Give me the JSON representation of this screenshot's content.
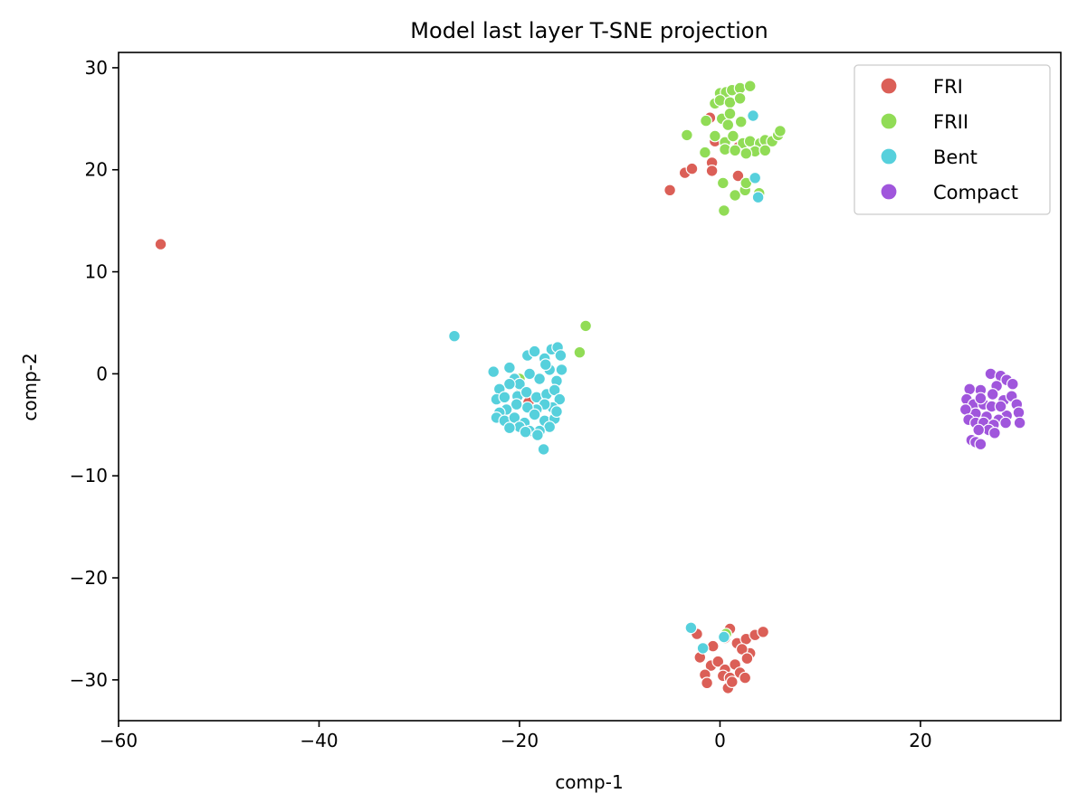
{
  "chart_data": {
    "type": "scatter",
    "title": "Model last layer T-SNE projection",
    "xlabel": "comp-1",
    "ylabel": "comp-2",
    "xlim": [
      -60,
      34
    ],
    "ylim": [
      -34,
      31.5
    ],
    "xticks": [
      -60,
      -40,
      -20,
      0,
      20
    ],
    "yticks": [
      -30,
      -20,
      -10,
      0,
      10,
      20,
      30
    ],
    "tick_labels": {
      "x": [
        "−60",
        "−40",
        "−20",
        "0",
        "20"
      ],
      "y": [
        "−30",
        "−20",
        "−10",
        "0",
        "10",
        "20",
        "30"
      ]
    },
    "grid": false,
    "legend_position": "upper-right",
    "series": [
      {
        "name": "FRI",
        "color": "#db5f57",
        "points": [
          [
            -55.8,
            12.7
          ],
          [
            -5.0,
            18.0
          ],
          [
            -3.5,
            19.7
          ],
          [
            -2.8,
            20.1
          ],
          [
            -0.8,
            20.7
          ],
          [
            -0.8,
            19.9
          ],
          [
            -1.0,
            25.1
          ],
          [
            -0.5,
            22.8
          ],
          [
            1.8,
            22.2
          ],
          [
            1.8,
            19.4
          ],
          [
            -19.1,
            -2.8
          ],
          [
            -2.3,
            -25.5
          ],
          [
            -2.0,
            -27.8
          ],
          [
            0.5,
            -25.9
          ],
          [
            1.0,
            -25.0
          ],
          [
            1.7,
            -26.4
          ],
          [
            2.6,
            -26.0
          ],
          [
            3.5,
            -25.6
          ],
          [
            4.3,
            -25.3
          ],
          [
            3.0,
            -27.4
          ],
          [
            2.2,
            -27.0
          ],
          [
            -0.7,
            -26.7
          ],
          [
            -0.9,
            -28.6
          ],
          [
            -0.2,
            -28.2
          ],
          [
            0.5,
            -29.0
          ],
          [
            1.5,
            -28.5
          ],
          [
            2.7,
            -27.9
          ],
          [
            -1.5,
            -29.5
          ],
          [
            -1.3,
            -30.3
          ],
          [
            0.3,
            -29.6
          ],
          [
            1.0,
            -29.8
          ],
          [
            2.0,
            -29.3
          ],
          [
            2.5,
            -29.8
          ],
          [
            0.8,
            -30.8
          ],
          [
            1.2,
            -30.2
          ]
        ]
      },
      {
        "name": "FRII",
        "color": "#91dc56",
        "points": [
          [
            -3.3,
            23.4
          ],
          [
            -1.5,
            21.7
          ],
          [
            -1.4,
            24.8
          ],
          [
            -0.5,
            26.5
          ],
          [
            0.0,
            27.5
          ],
          [
            0.6,
            27.6
          ],
          [
            1.2,
            27.8
          ],
          [
            2.0,
            28.0
          ],
          [
            3.0,
            28.2
          ],
          [
            0.0,
            26.8
          ],
          [
            1.0,
            26.6
          ],
          [
            2.0,
            27.0
          ],
          [
            0.2,
            25.0
          ],
          [
            1.0,
            25.5
          ],
          [
            2.1,
            24.7
          ],
          [
            0.8,
            24.4
          ],
          [
            -0.5,
            23.3
          ],
          [
            0.5,
            22.7
          ],
          [
            1.3,
            23.3
          ],
          [
            2.3,
            22.6
          ],
          [
            3.0,
            22.8
          ],
          [
            4.0,
            22.6
          ],
          [
            4.5,
            22.9
          ],
          [
            5.2,
            22.8
          ],
          [
            5.8,
            23.4
          ],
          [
            6.0,
            23.8
          ],
          [
            3.5,
            21.8
          ],
          [
            2.6,
            21.6
          ],
          [
            4.5,
            21.9
          ],
          [
            0.5,
            22.0
          ],
          [
            1.5,
            21.9
          ],
          [
            0.3,
            18.7
          ],
          [
            1.5,
            17.5
          ],
          [
            2.5,
            18.0
          ],
          [
            2.6,
            18.7
          ],
          [
            3.9,
            17.7
          ],
          [
            0.4,
            16.0
          ],
          [
            -20.0,
            -0.5
          ],
          [
            -19.8,
            -1.5
          ],
          [
            -14.0,
            2.1
          ],
          [
            -13.4,
            4.7
          ],
          [
            0.6,
            -25.5
          ]
        ]
      },
      {
        "name": "Bent",
        "color": "#56d0dc",
        "points": [
          [
            -26.5,
            3.7
          ],
          [
            -17.6,
            -7.4
          ],
          [
            -22.6,
            0.2
          ],
          [
            -21.0,
            0.6
          ],
          [
            -20.5,
            -0.5
          ],
          [
            -19.2,
            1.8
          ],
          [
            -18.5,
            2.2
          ],
          [
            -17.5,
            1.5
          ],
          [
            -16.8,
            2.4
          ],
          [
            -16.2,
            2.6
          ],
          [
            -15.8,
            0.4
          ],
          [
            -16.3,
            -0.7
          ],
          [
            -17.0,
            0.4
          ],
          [
            -18.0,
            -0.5
          ],
          [
            -19.0,
            0.0
          ],
          [
            -20.0,
            -1.0
          ],
          [
            -21.0,
            -1.0
          ],
          [
            -22.0,
            -1.5
          ],
          [
            -22.3,
            -2.5
          ],
          [
            -21.5,
            -2.3
          ],
          [
            -20.2,
            -2.2
          ],
          [
            -19.3,
            -1.8
          ],
          [
            -18.3,
            -2.3
          ],
          [
            -17.3,
            -2.0
          ],
          [
            -16.5,
            -1.6
          ],
          [
            -16.0,
            -2.5
          ],
          [
            -16.7,
            -3.3
          ],
          [
            -17.5,
            -3.0
          ],
          [
            -18.3,
            -3.5
          ],
          [
            -19.2,
            -3.3
          ],
          [
            -20.3,
            -3.0
          ],
          [
            -21.3,
            -3.5
          ],
          [
            -22.0,
            -3.8
          ],
          [
            -22.3,
            -4.3
          ],
          [
            -21.5,
            -4.6
          ],
          [
            -20.5,
            -4.3
          ],
          [
            -19.5,
            -4.8
          ],
          [
            -18.5,
            -4.0
          ],
          [
            -17.5,
            -4.6
          ],
          [
            -16.5,
            -4.4
          ],
          [
            -16.3,
            -3.7
          ],
          [
            -17.0,
            -5.2
          ],
          [
            -18.0,
            -5.6
          ],
          [
            -19.0,
            -5.6
          ],
          [
            -20.0,
            -5.2
          ],
          [
            -21.0,
            -5.3
          ],
          [
            -18.2,
            -6.0
          ],
          [
            -19.4,
            -5.7
          ],
          [
            -17.4,
            0.9
          ],
          [
            -15.9,
            1.8
          ],
          [
            3.3,
            25.3
          ],
          [
            3.5,
            19.2
          ],
          [
            3.8,
            17.3
          ],
          [
            -2.9,
            -24.9
          ],
          [
            -1.7,
            -26.9
          ],
          [
            0.4,
            -25.8
          ]
        ]
      },
      {
        "name": "Compact",
        "color": "#a056dc",
        "points": [
          [
            27.0,
            0.0
          ],
          [
            28.0,
            -0.2
          ],
          [
            28.6,
            -0.6
          ],
          [
            29.2,
            -1.0
          ],
          [
            27.6,
            -1.2
          ],
          [
            26.0,
            -1.6
          ],
          [
            24.9,
            -1.5
          ],
          [
            24.6,
            -2.5
          ],
          [
            25.3,
            -3.0
          ],
          [
            26.3,
            -3.0
          ],
          [
            27.1,
            -3.2
          ],
          [
            28.3,
            -2.6
          ],
          [
            29.1,
            -2.2
          ],
          [
            29.6,
            -3.0
          ],
          [
            29.8,
            -3.8
          ],
          [
            28.6,
            -4.1
          ],
          [
            27.8,
            -4.5
          ],
          [
            26.6,
            -4.2
          ],
          [
            25.5,
            -3.9
          ],
          [
            24.5,
            -3.5
          ],
          [
            24.8,
            -4.5
          ],
          [
            25.5,
            -4.8
          ],
          [
            26.3,
            -4.8
          ],
          [
            27.3,
            -5.0
          ],
          [
            28.5,
            -4.8
          ],
          [
            29.9,
            -4.8
          ],
          [
            26.8,
            -5.5
          ],
          [
            25.8,
            -5.5
          ],
          [
            25.1,
            -6.5
          ],
          [
            25.5,
            -6.7
          ],
          [
            26.0,
            -6.9
          ],
          [
            27.4,
            -5.8
          ],
          [
            28.0,
            -3.2
          ],
          [
            27.2,
            -2.0
          ],
          [
            26.0,
            -2.4
          ]
        ]
      }
    ]
  }
}
